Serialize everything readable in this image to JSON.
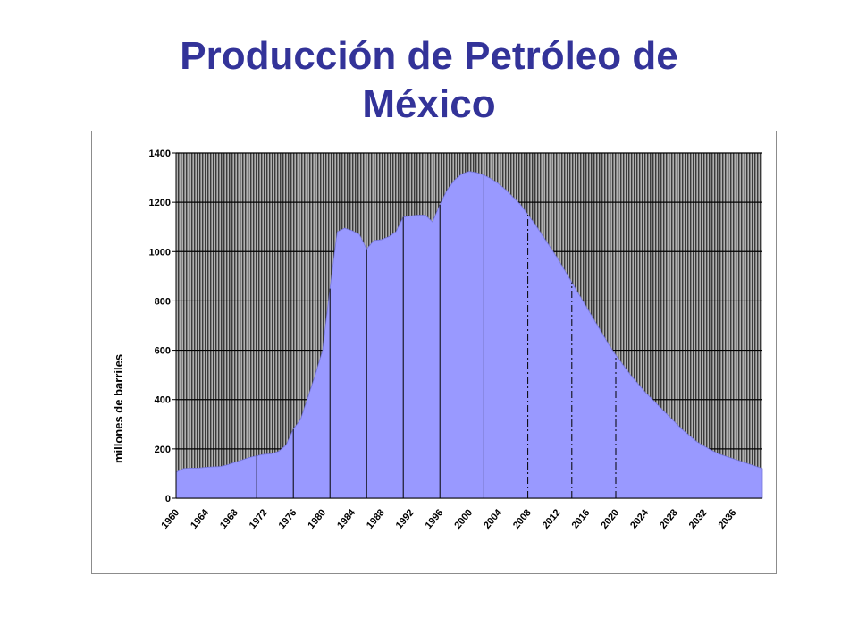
{
  "slide": {
    "title_line1": "Producción de Petróleo de",
    "title_line2": "México"
  },
  "colors": {
    "title": "#333399",
    "area_fill": "#9999ff",
    "plot_background": "#7a7a7a",
    "gridline": "#000000"
  },
  "chart_data": {
    "type": "area",
    "title": "",
    "xlabel": "",
    "ylabel": "millones de barriles",
    "ylim": [
      0,
      1400
    ],
    "yticks": [
      0,
      200,
      400,
      600,
      800,
      1000,
      1200,
      1400
    ],
    "xlim": [
      1960,
      2040
    ],
    "xticks": [
      "1960",
      "1964",
      "1968",
      "1972",
      "1976",
      "1980",
      "1984",
      "1988",
      "1992",
      "1996",
      "2000",
      "2004",
      "2008",
      "2012",
      "2016",
      "2020",
      "2024",
      "2028",
      "2032",
      "2036"
    ],
    "grid": true,
    "legend": "none",
    "series": [
      {
        "x": [
          1960,
          1961,
          1962,
          1963,
          1964,
          1965,
          1966,
          1967,
          1968,
          1969,
          1970,
          1971,
          1972,
          1973,
          1974,
          1975,
          1976,
          1977,
          1978,
          1979,
          1980,
          1981,
          1982,
          1983,
          1984,
          1985,
          1986,
          1987,
          1988,
          1989,
          1990,
          1991,
          1992,
          1993,
          1994,
          1995,
          1996,
          1997,
          1998,
          1999,
          2000,
          2001,
          2002,
          2003,
          2004,
          2005,
          2006,
          2007,
          2008,
          2009,
          2010,
          2011,
          2012,
          2013,
          2014,
          2015,
          2016,
          2017,
          2018,
          2019,
          2020,
          2021,
          2022,
          2023,
          2024,
          2025,
          2026,
          2027,
          2028,
          2029,
          2030,
          2031,
          2032,
          2033,
          2034,
          2035,
          2036,
          2037,
          2038,
          2039,
          2040
        ],
        "y": [
          105,
          120,
          122,
          122,
          125,
          127,
          128,
          135,
          145,
          155,
          165,
          172,
          178,
          180,
          190,
          215,
          280,
          320,
          410,
          500,
          600,
          850,
          1080,
          1095,
          1085,
          1070,
          1010,
          1045,
          1048,
          1060,
          1080,
          1140,
          1145,
          1148,
          1148,
          1120,
          1190,
          1250,
          1290,
          1315,
          1325,
          1320,
          1310,
          1295,
          1275,
          1250,
          1220,
          1190,
          1150,
          1110,
          1065,
          1020,
          975,
          925,
          875,
          825,
          775,
          725,
          675,
          625,
          580,
          540,
          500,
          465,
          430,
          400,
          370,
          340,
          310,
          280,
          255,
          230,
          212,
          195,
          180,
          170,
          160,
          150,
          140,
          130,
          120
        ]
      }
    ]
  }
}
